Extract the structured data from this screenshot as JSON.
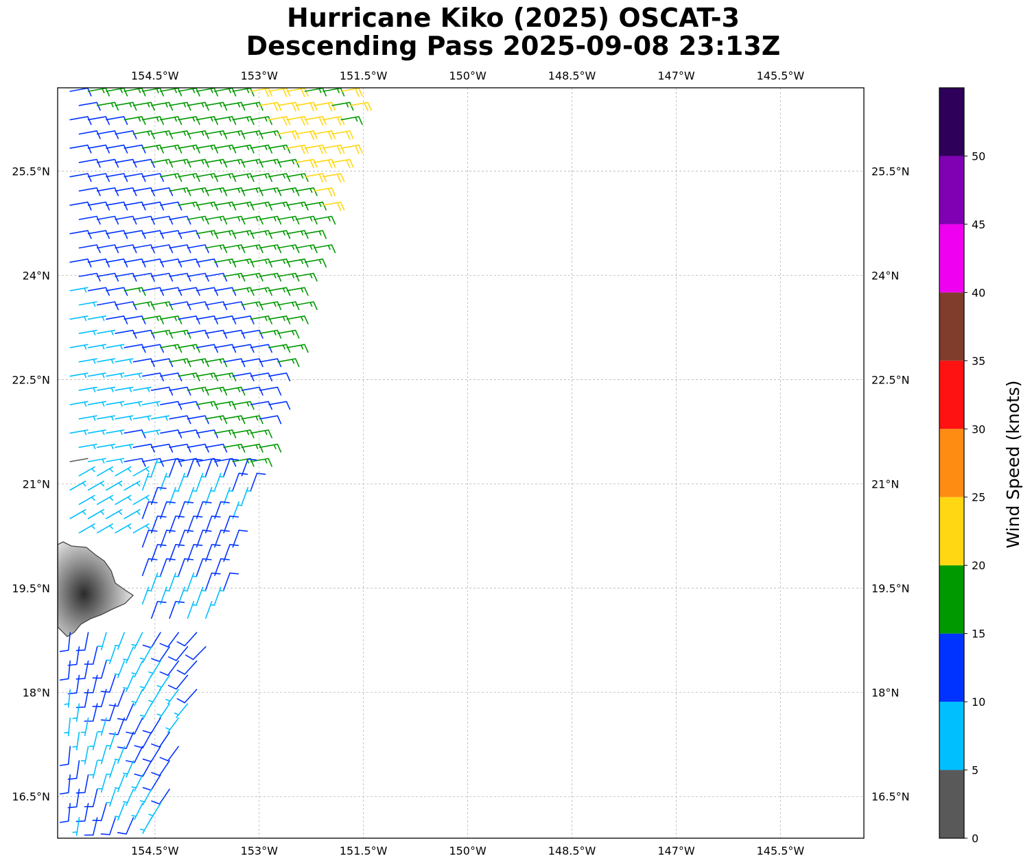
{
  "title": {
    "line1": "Hurricane Kiko (2025) OSCAT-3",
    "line2": "Descending Pass 2025-09-08 23:13Z"
  },
  "map": {
    "lon_range": [
      -155.9,
      -144.3
    ],
    "lat_range": [
      15.9,
      26.7
    ],
    "lon_ticks": [
      {
        "value": -154.5,
        "label": "154.5°W"
      },
      {
        "value": -153.0,
        "label": "153°W"
      },
      {
        "value": -151.5,
        "label": "151.5°W"
      },
      {
        "value": -150.0,
        "label": "150°W"
      },
      {
        "value": -148.5,
        "label": "148.5°W"
      },
      {
        "value": -147.0,
        "label": "147°W"
      },
      {
        "value": -145.5,
        "label": "145.5°W"
      }
    ],
    "lat_ticks": [
      {
        "value": 25.5,
        "label": "25.5°N"
      },
      {
        "value": 24.0,
        "label": "24°N"
      },
      {
        "value": 22.5,
        "label": "22.5°N"
      },
      {
        "value": 21.0,
        "label": "21°N"
      },
      {
        "value": 19.5,
        "label": "19.5°N"
      },
      {
        "value": 18.0,
        "label": "18°N"
      },
      {
        "value": 16.5,
        "label": "16.5°N"
      }
    ],
    "gridlines": true,
    "land": "Island of Hawaii (shaded terrain)"
  },
  "colorbar": {
    "label": "Wind Speed (knots)",
    "ticks": [
      "0",
      "5",
      "10",
      "15",
      "20",
      "25",
      "30",
      "35",
      "40",
      "45",
      "50"
    ],
    "bins": [
      {
        "min": 0,
        "max": 5,
        "color": "#595959"
      },
      {
        "min": 5,
        "max": 10,
        "color": "#00bfff"
      },
      {
        "min": 10,
        "max": 15,
        "color": "#0033ff"
      },
      {
        "min": 15,
        "max": 20,
        "color": "#009900"
      },
      {
        "min": 20,
        "max": 25,
        "color": "#ffd712"
      },
      {
        "min": 25,
        "max": 30,
        "color": "#ff8c12"
      },
      {
        "min": 30,
        "max": 35,
        "color": "#ff1212"
      },
      {
        "min": 35,
        "max": 40,
        "color": "#803d2b"
      },
      {
        "min": 40,
        "max": 45,
        "color": "#f000f0"
      },
      {
        "min": 45,
        "max": 50,
        "color": "#8000b3"
      },
      {
        "min": 50,
        "max": 55,
        "color": "#2e0059"
      }
    ]
  },
  "wind_barbs": {
    "description": "OSCAT-3 wind barbs over the western part of the map; easterly trade winds north of ~21N, weaker cyclonic flow near the Big Island",
    "lon_range": [
      -155.9,
      -151.6
    ],
    "lat_range": [
      16.0,
      26.7
    ]
  }
}
